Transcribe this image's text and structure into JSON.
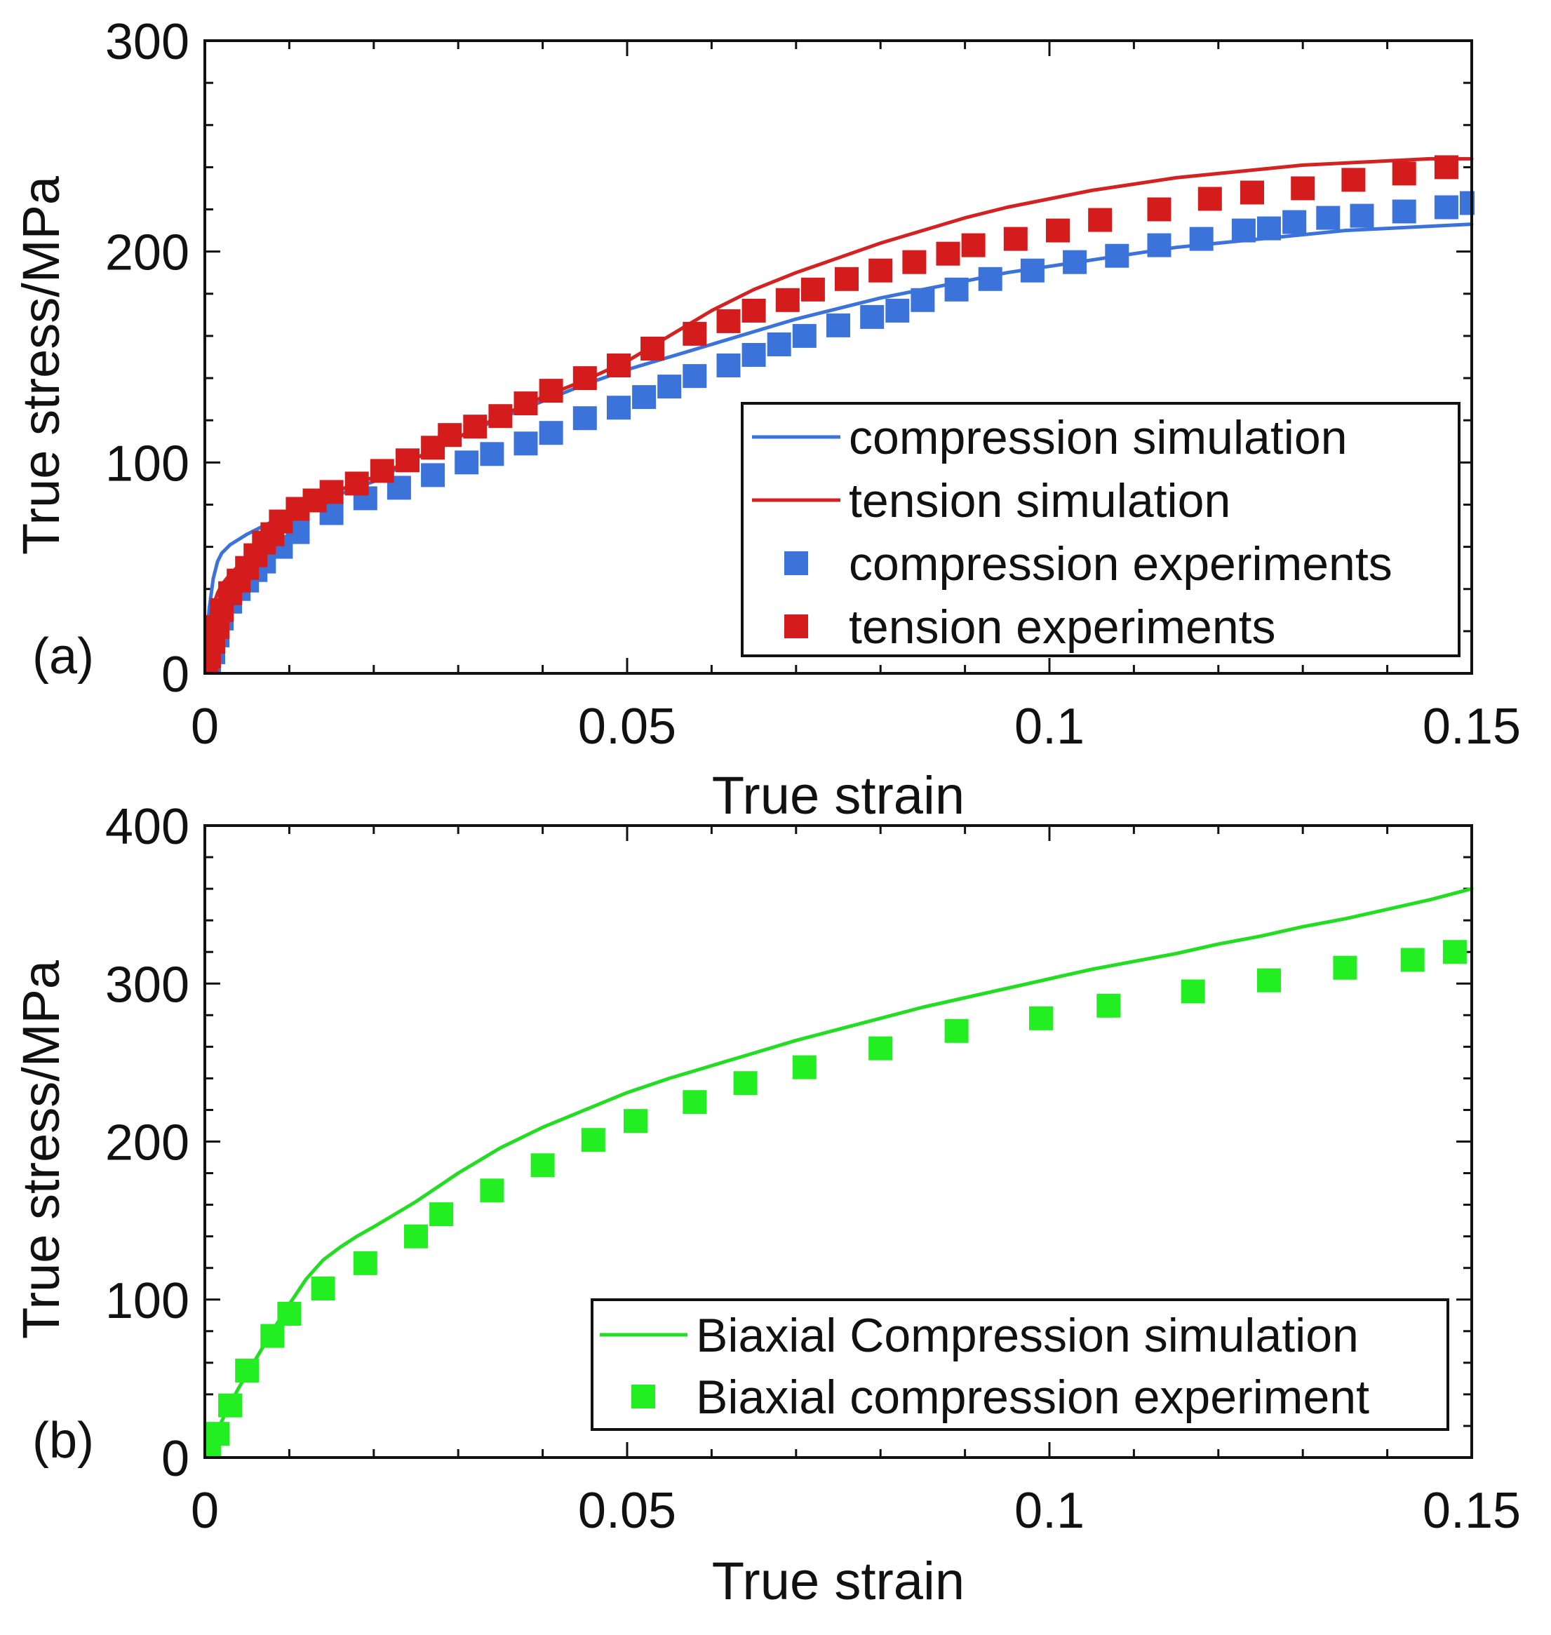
{
  "chart_data": [
    {
      "type": "line",
      "panel_label": "(a)",
      "xlabel": "True strain",
      "ylabel": "True stress/MPa",
      "xlim": [
        0,
        0.15
      ],
      "ylim": [
        0,
        300
      ],
      "x_ticks": [
        0,
        0.05,
        0.1,
        0.15
      ],
      "x_tick_labels": [
        "0",
        "0.05",
        "0.1",
        "0.15"
      ],
      "y_ticks": [
        0,
        100,
        200,
        300
      ],
      "y_tick_labels": [
        "0",
        "100",
        "200",
        "300"
      ],
      "x_minor_step": 0.01,
      "y_minor_step": 20,
      "grid": false,
      "legend_position": "bottom-right",
      "series": [
        {
          "name": "compression simulation",
          "kind": "line",
          "color": "#3b73db",
          "x": [
            0,
            0.0005,
            0.001,
            0.0015,
            0.002,
            0.003,
            0.005,
            0.008,
            0.012,
            0.016,
            0.02,
            0.025,
            0.03,
            0.035,
            0.04,
            0.045,
            0.05,
            0.055,
            0.06,
            0.065,
            0.07,
            0.075,
            0.08,
            0.085,
            0.09,
            0.095,
            0.1,
            0.105,
            0.11,
            0.115,
            0.12,
            0.125,
            0.13,
            0.135,
            0.14,
            0.145,
            0.15
          ],
          "y": [
            0,
            30,
            45,
            53,
            57,
            61,
            66,
            72,
            79,
            85,
            91,
            102,
            112,
            121,
            129,
            137,
            144,
            150,
            156,
            162,
            168,
            173,
            178,
            182,
            186,
            190,
            193,
            196,
            199,
            202,
            204,
            206,
            208,
            210,
            211,
            212,
            213
          ]
        },
        {
          "name": "tension simulation",
          "kind": "line",
          "color": "#d42222",
          "x": [
            0,
            0.0005,
            0.001,
            0.0015,
            0.002,
            0.003,
            0.005,
            0.008,
            0.012,
            0.016,
            0.02,
            0.025,
            0.03,
            0.035,
            0.04,
            0.045,
            0.05,
            0.055,
            0.06,
            0.065,
            0.07,
            0.075,
            0.08,
            0.085,
            0.09,
            0.095,
            0.1,
            0.105,
            0.11,
            0.115,
            0.12,
            0.125,
            0.13,
            0.135,
            0.14,
            0.145,
            0.15
          ],
          "y": [
            0,
            20,
            32,
            38,
            42,
            47,
            55,
            67,
            79,
            87,
            93,
            102,
            112,
            122,
            131,
            139,
            148,
            160,
            172,
            182,
            190,
            197,
            204,
            210,
            216,
            221,
            225,
            229,
            232,
            235,
            237,
            239,
            241,
            242,
            243,
            244,
            244
          ]
        },
        {
          "name": "compression experiments",
          "kind": "scatter",
          "marker": "square",
          "color": "#3b73db",
          "x": [
            0.0005,
            0.001,
            0.0015,
            0.002,
            0.003,
            0.004,
            0.005,
            0.006,
            0.007,
            0.009,
            0.011,
            0.015,
            0.019,
            0.023,
            0.027,
            0.031,
            0.034,
            0.038,
            0.041,
            0.045,
            0.049,
            0.052,
            0.055,
            0.058,
            0.062,
            0.065,
            0.068,
            0.071,
            0.075,
            0.079,
            0.082,
            0.085,
            0.089,
            0.093,
            0.098,
            0.103,
            0.108,
            0.113,
            0.118,
            0.123,
            0.126,
            0.129,
            0.133,
            0.137,
            0.142,
            0.147,
            0.15
          ],
          "y": [
            2,
            10,
            18,
            26,
            34,
            40,
            44,
            49,
            53,
            60,
            67,
            76,
            83,
            88,
            94,
            100,
            104,
            109,
            114,
            121,
            126,
            131,
            136,
            141,
            146,
            151,
            156,
            160,
            165,
            169,
            172,
            177,
            182,
            187,
            191,
            195,
            198,
            203,
            206,
            210,
            211,
            214,
            216,
            217,
            219,
            221,
            223
          ]
        },
        {
          "name": "tension experiments",
          "kind": "scatter",
          "marker": "square",
          "color": "#d41c1c",
          "x": [
            0.0002,
            0.0005,
            0.001,
            0.0015,
            0.002,
            0.003,
            0.004,
            0.005,
            0.006,
            0.007,
            0.008,
            0.009,
            0.011,
            0.013,
            0.015,
            0.018,
            0.021,
            0.024,
            0.027,
            0.029,
            0.032,
            0.035,
            0.038,
            0.041,
            0.045,
            0.049,
            0.053,
            0.058,
            0.062,
            0.065,
            0.069,
            0.072,
            0.076,
            0.08,
            0.084,
            0.088,
            0.091,
            0.096,
            0.101,
            0.106,
            0.113,
            0.119,
            0.124,
            0.13,
            0.136,
            0.142,
            0.147
          ],
          "y": [
            2,
            8,
            15,
            22,
            30,
            38,
            44,
            50,
            56,
            62,
            66,
            72,
            78,
            82,
            86,
            90,
            96,
            101,
            107,
            113,
            117,
            122,
            128,
            134,
            140,
            146,
            154,
            161,
            167,
            172,
            177,
            182,
            187,
            191,
            195,
            199,
            203,
            206,
            210,
            215,
            220,
            225,
            228,
            230,
            234,
            237,
            240
          ]
        }
      ]
    },
    {
      "type": "line",
      "panel_label": "(b)",
      "xlabel": "True strain",
      "ylabel": "True stress/MPa",
      "xlim": [
        0,
        0.15
      ],
      "ylim": [
        0,
        400
      ],
      "x_ticks": [
        0,
        0.05,
        0.1,
        0.15
      ],
      "x_tick_labels": [
        "0",
        "0.05",
        "0.1",
        "0.15"
      ],
      "y_ticks": [
        0,
        100,
        200,
        300,
        400
      ],
      "y_tick_labels": [
        "0",
        "100",
        "200",
        "300",
        "400"
      ],
      "x_minor_step": 0.01,
      "y_minor_step": 20,
      "grid": false,
      "legend_position": "bottom-right",
      "series": [
        {
          "name": "Biaxial Compression simulation",
          "kind": "line",
          "color": "#22dd22",
          "x": [
            0,
            0.001,
            0.002,
            0.003,
            0.004,
            0.006,
            0.008,
            0.01,
            0.012,
            0.014,
            0.016,
            0.018,
            0.02,
            0.025,
            0.03,
            0.035,
            0.04,
            0.045,
            0.05,
            0.055,
            0.06,
            0.065,
            0.07,
            0.075,
            0.08,
            0.085,
            0.09,
            0.095,
            0.1,
            0.105,
            0.11,
            0.115,
            0.12,
            0.125,
            0.13,
            0.135,
            0.14,
            0.145,
            0.15
          ],
          "y": [
            0,
            12,
            23,
            34,
            44,
            62,
            80,
            97,
            113,
            125,
            133,
            140,
            146,
            162,
            180,
            196,
            209,
            220,
            231,
            240,
            248,
            256,
            264,
            271,
            278,
            285,
            291,
            297,
            303,
            309,
            314,
            319,
            325,
            330,
            336,
            341,
            347,
            353,
            360
          ]
        },
        {
          "name": "Biaxial compression experiment",
          "kind": "scatter",
          "marker": "square",
          "color": "#22ee22",
          "x": [
            0.0005,
            0.0015,
            0.003,
            0.005,
            0.008,
            0.01,
            0.014,
            0.019,
            0.025,
            0.028,
            0.034,
            0.04,
            0.046,
            0.051,
            0.058,
            0.064,
            0.071,
            0.08,
            0.089,
            0.099,
            0.107,
            0.117,
            0.126,
            0.135,
            0.143,
            0.148
          ],
          "y": [
            2,
            15,
            33,
            55,
            77,
            91,
            107,
            123,
            140,
            154,
            169,
            185,
            201,
            213,
            225,
            237,
            247,
            259,
            270,
            278,
            286,
            295,
            302,
            310,
            315,
            320
          ]
        }
      ]
    }
  ]
}
